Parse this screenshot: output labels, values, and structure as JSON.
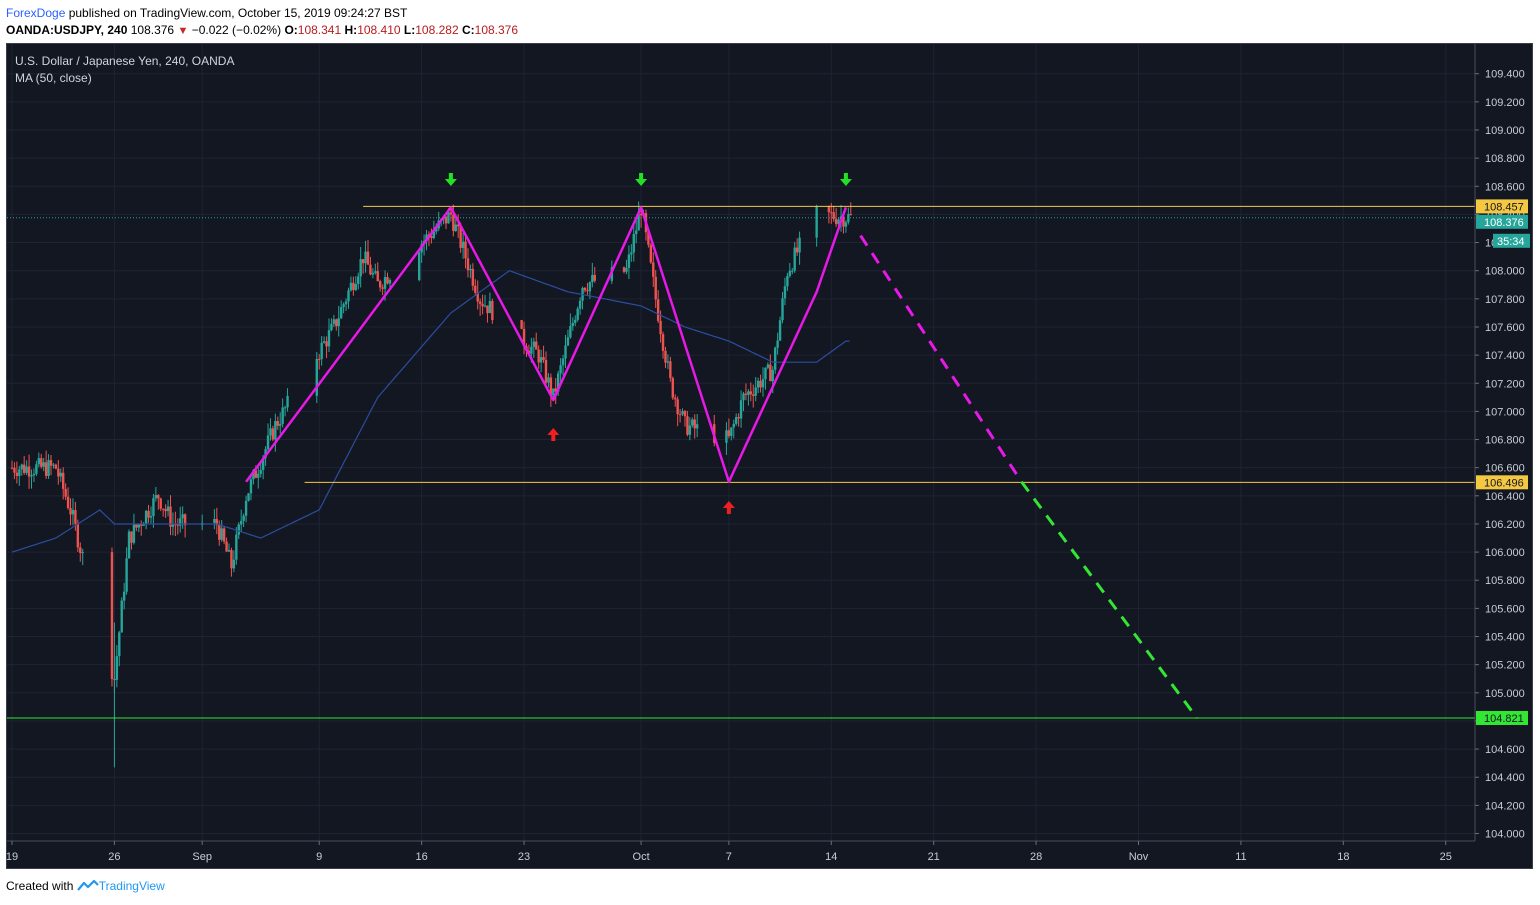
{
  "header": {
    "author": "ForexDoge",
    "published_text": " published on TradingView.com, October 15, 2019 09:24:27 BST",
    "symbol": "OANDA:USDJPY, 240",
    "last": "108.376",
    "change": "−0.022 (−0.02%)",
    "o_label": "O:",
    "o_value": "108.341",
    "h_label": "H:",
    "h_value": "108.410",
    "l_label": "L:",
    "l_value": "108.282",
    "c_label": "C:",
    "c_value": "108.376"
  },
  "legend": {
    "title": "U.S. Dollar / Japanese Yen, 240, OANDA",
    "indicator": "MA (50, close)"
  },
  "footer": {
    "created_with": "Created with",
    "brand": "TradingView"
  },
  "chart_data": {
    "type": "candlestick",
    "y_axis": {
      "min": 104.0,
      "max": 109.4,
      "position": "right",
      "ticks": [
        104.0,
        104.2,
        104.4,
        104.6,
        104.8,
        105.0,
        105.2,
        105.4,
        105.6,
        105.8,
        106.0,
        106.2,
        106.4,
        106.6,
        106.8,
        107.0,
        107.2,
        107.4,
        107.6,
        107.8,
        108.0,
        108.2,
        108.4,
        108.6,
        108.8,
        109.0,
        109.2,
        109.4
      ],
      "tick_labels": [
        "104.000",
        "104.200",
        "104.400",
        "104.600",
        "104.800",
        "105.000",
        "105.200",
        "105.400",
        "105.600",
        "105.800",
        "106.000",
        "106.200",
        "106.400",
        "106.600",
        "106.800",
        "107.000",
        "107.200",
        "107.400",
        "107.600",
        "107.800",
        "108.000",
        "108.200",
        "108.400",
        "108.600",
        "108.800",
        "109.000",
        "109.200",
        "109.400"
      ]
    },
    "x_axis": {
      "tick_labels": [
        "19",
        "26",
        "Sep",
        "9",
        "16",
        "23",
        "Oct",
        "7",
        "14",
        "21",
        "28",
        "Nov",
        "11",
        "18",
        "25"
      ]
    },
    "grid": true,
    "colors": {
      "background": "#131722",
      "up": "#26a69a",
      "down": "#ef5350",
      "ma": "#2a4e9e",
      "zigzag": "#e619e6",
      "resistance": "#f5c842",
      "target": "#33e633",
      "last_price": "#26a69a"
    },
    "price_labels": {
      "resistance": "108.457",
      "last_price": "108.376",
      "countdown": "35:34",
      "support": "106.496",
      "target": "104.821"
    },
    "levels": {
      "resistance": 108.457,
      "support": 106.496,
      "target": 104.821,
      "last": 108.376
    },
    "zigzag_points": [
      {
        "date": "Sep 4",
        "price": 106.5
      },
      {
        "date": "Sep 18",
        "price": 108.45
      },
      {
        "date": "Sep 25",
        "price": 107.08
      },
      {
        "date": "Oct 1",
        "price": 108.45
      },
      {
        "date": "Oct 7",
        "price": 106.5
      },
      {
        "date": "Oct 13",
        "price": 107.85
      },
      {
        "date": "Oct 15",
        "price": 108.45
      }
    ],
    "projection": [
      {
        "date": "Oct 16",
        "price": 108.25
      },
      {
        "date": "Oct 27",
        "price": 106.5
      },
      {
        "date": "Nov 8",
        "price": 104.82
      }
    ],
    "markers": [
      {
        "type": "sell",
        "date": "Sep 18"
      },
      {
        "type": "sell",
        "date": "Oct 1"
      },
      {
        "type": "sell",
        "date": "Oct 15"
      },
      {
        "type": "buy",
        "date": "Sep 25"
      },
      {
        "type": "buy",
        "date": "Oct 7"
      }
    ],
    "price_anchors": [
      [
        "Aug 19",
        106.6
      ],
      [
        "Aug 22",
        106.6
      ],
      [
        "Aug 23",
        106.3
      ],
      [
        "Aug 26",
        105.1
      ],
      [
        "Aug 27",
        106.1
      ],
      [
        "Aug 29",
        106.4
      ],
      [
        "Aug 30",
        106.2
      ],
      [
        "Sep 2",
        106.2
      ],
      [
        "Sep 3",
        105.9
      ],
      [
        "Sep 4",
        106.4
      ],
      [
        "Sep 6",
        106.9
      ],
      [
        "Sep 10",
        107.6
      ],
      [
        "Sep 12",
        108.1
      ],
      [
        "Sep 13",
        107.9
      ],
      [
        "Sep 16",
        108.2
      ],
      [
        "Sep 18",
        108.4
      ],
      [
        "Sep 19",
        108.1
      ],
      [
        "Sep 20",
        107.8
      ],
      [
        "Sep 24",
        107.4
      ],
      [
        "Sep 25",
        107.1
      ],
      [
        "Sep 27",
        107.9
      ],
      [
        "Sep 30",
        108.0
      ],
      [
        "Oct 1",
        108.45
      ],
      [
        "Oct 2",
        107.8
      ],
      [
        "Oct 3",
        107.2
      ],
      [
        "Oct 4",
        106.9
      ],
      [
        "Oct 7",
        106.8
      ],
      [
        "Oct 8",
        107.1
      ],
      [
        "Oct 10",
        107.3
      ],
      [
        "Oct 11",
        108.0
      ],
      [
        "Oct 13",
        108.4
      ],
      [
        "Oct 15",
        108.38
      ]
    ],
    "ma_anchors": [
      [
        "Aug 19",
        106.0
      ],
      [
        "Aug 22",
        106.1
      ],
      [
        "Aug 25",
        106.3
      ],
      [
        "Aug 26",
        106.2
      ],
      [
        "Sep 2",
        106.2
      ],
      [
        "Sep 5",
        106.1
      ],
      [
        "Sep 9",
        106.3
      ],
      [
        "Sep 13",
        107.1
      ],
      [
        "Sep 18",
        107.7
      ],
      [
        "Sep 22",
        108.0
      ],
      [
        "Sep 26",
        107.85
      ],
      [
        "Oct 1",
        107.75
      ],
      [
        "Oct 4",
        107.6
      ],
      [
        "Oct 7",
        107.5
      ],
      [
        "Oct 10",
        107.35
      ],
      [
        "Oct 13",
        107.35
      ],
      [
        "Oct 15",
        107.5
      ]
    ]
  }
}
